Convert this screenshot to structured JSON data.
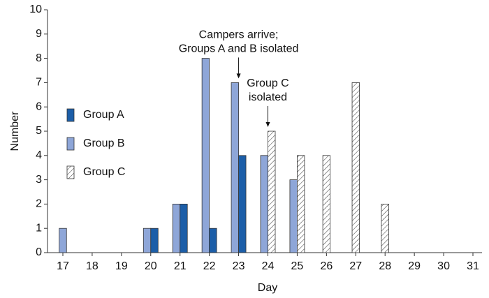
{
  "chart_data": {
    "type": "bar",
    "x_label": "Day",
    "y_label": "Number",
    "categories": [
      "17",
      "18",
      "19",
      "20",
      "21",
      "22",
      "23",
      "24",
      "25",
      "26",
      "27",
      "28",
      "29",
      "30",
      "31"
    ],
    "series": [
      {
        "name": "Group A",
        "color": "#1c5ea8",
        "values": [
          0,
          0,
          0,
          1,
          2,
          1,
          4,
          0,
          0,
          0,
          0,
          0,
          0,
          0,
          0
        ]
      },
      {
        "name": "Group B",
        "color": "#8ea6d8",
        "values": [
          1,
          0,
          0,
          1,
          2,
          8,
          7,
          4,
          3,
          0,
          0,
          0,
          0,
          0,
          0
        ]
      },
      {
        "name": "Group C",
        "color": "#ffffff",
        "hatch": true,
        "values": [
          0,
          0,
          0,
          0,
          0,
          0,
          0,
          5,
          4,
          4,
          7,
          2,
          0,
          0,
          0
        ]
      }
    ],
    "bar_order": [
      "Group B",
      "Group A",
      "Group C"
    ],
    "ylim": [
      0,
      10
    ],
    "yticks": [
      0,
      1,
      2,
      3,
      4,
      5,
      6,
      7,
      8,
      9,
      10
    ],
    "annotations": [
      {
        "lines": [
          "Campers arrive;",
          "Groups A and B isolated"
        ],
        "category": "23"
      },
      {
        "lines": [
          "Group C",
          "isolated"
        ],
        "category": "24"
      }
    ]
  }
}
